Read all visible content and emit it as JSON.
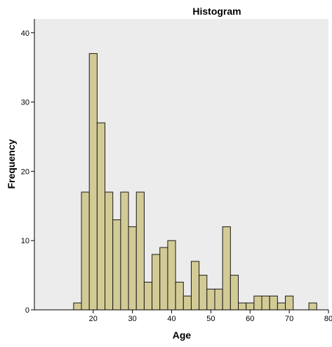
{
  "chart_data": {
    "type": "bar",
    "title": "Histogram",
    "xlabel": "Age",
    "ylabel": "Frequency",
    "xlim": [
      5,
      80
    ],
    "ylim": [
      0,
      42
    ],
    "xticks": [
      20,
      30,
      40,
      50,
      60,
      70,
      80
    ],
    "yticks": [
      0,
      10,
      20,
      30,
      40
    ],
    "bin_width": 2,
    "bins": [
      {
        "x0": 15,
        "x1": 17,
        "value": 1
      },
      {
        "x0": 17,
        "x1": 19,
        "value": 17
      },
      {
        "x0": 19,
        "x1": 21,
        "value": 37
      },
      {
        "x0": 21,
        "x1": 23,
        "value": 27
      },
      {
        "x0": 23,
        "x1": 25,
        "value": 17
      },
      {
        "x0": 25,
        "x1": 27,
        "value": 13
      },
      {
        "x0": 27,
        "x1": 29,
        "value": 17
      },
      {
        "x0": 29,
        "x1": 31,
        "value": 12
      },
      {
        "x0": 31,
        "x1": 33,
        "value": 17
      },
      {
        "x0": 33,
        "x1": 35,
        "value": 4
      },
      {
        "x0": 35,
        "x1": 37,
        "value": 8
      },
      {
        "x0": 37,
        "x1": 39,
        "value": 9
      },
      {
        "x0": 39,
        "x1": 41,
        "value": 10
      },
      {
        "x0": 41,
        "x1": 43,
        "value": 4
      },
      {
        "x0": 43,
        "x1": 45,
        "value": 2
      },
      {
        "x0": 45,
        "x1": 47,
        "value": 7
      },
      {
        "x0": 47,
        "x1": 49,
        "value": 5
      },
      {
        "x0": 49,
        "x1": 51,
        "value": 3
      },
      {
        "x0": 51,
        "x1": 53,
        "value": 3
      },
      {
        "x0": 53,
        "x1": 55,
        "value": 12
      },
      {
        "x0": 55,
        "x1": 57,
        "value": 5
      },
      {
        "x0": 57,
        "x1": 59,
        "value": 1
      },
      {
        "x0": 59,
        "x1": 61,
        "value": 1
      },
      {
        "x0": 61,
        "x1": 63,
        "value": 2
      },
      {
        "x0": 63,
        "x1": 65,
        "value": 2
      },
      {
        "x0": 65,
        "x1": 67,
        "value": 2
      },
      {
        "x0": 67,
        "x1": 69,
        "value": 1
      },
      {
        "x0": 69,
        "x1": 71,
        "value": 2
      },
      {
        "x0": 75,
        "x1": 77,
        "value": 1
      }
    ],
    "colors": {
      "bar_fill": "#d3cb96",
      "bar_stroke": "#1a1a1a",
      "plot_background": "#ececec",
      "axis": "#000000"
    },
    "grid": false,
    "legend": "none"
  }
}
